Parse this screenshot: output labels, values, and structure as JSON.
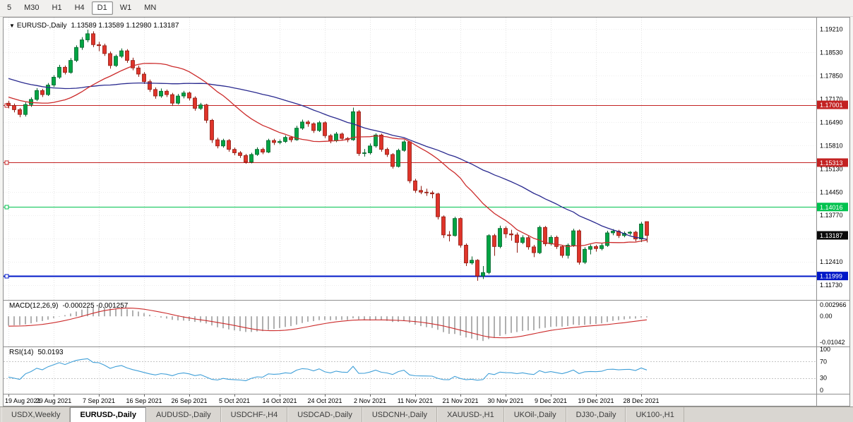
{
  "toolbar": {
    "items": [
      {
        "label": "5"
      },
      {
        "label": "M30"
      },
      {
        "label": "H1"
      },
      {
        "label": "H4"
      },
      {
        "label": "D1",
        "active": true
      },
      {
        "label": "W1"
      },
      {
        "label": "MN"
      }
    ]
  },
  "colors": {
    "up": "#00a443",
    "up_border": "#00622a",
    "down": "#df342a",
    "down_border": "#8f1a10",
    "ma_fast": "#cc2b2b",
    "ma_slow": "#2a2a8f",
    "hline_red": "#c32222",
    "hline_green": "#00c24e",
    "hline_blue": "#0018c8",
    "current_badge": "#0a0a0a",
    "macd_hist": "#b0b0b0",
    "macd_signal": "#cc2b2b",
    "rsi_line": "#3f9fd8",
    "grid": "#e3e3e3",
    "grid_h": "#ededed",
    "separator": "#8f8f8f",
    "axis_text": "#000000",
    "badge_text": "#ffffff"
  },
  "chart_data": {
    "type": "candlestick",
    "title": {
      "marker": "▼",
      "symbol": "EURUSD-,Daily",
      "ohlc": "1.13589 1.13589 1.12980 1.13187"
    },
    "price_range": [
      1.113,
      1.1955
    ],
    "price_axis_ticks": [
      1.1921,
      1.1853,
      1.1785,
      1.1717,
      1.1649,
      1.1581,
      1.1513,
      1.1445,
      1.1377,
      1.1309,
      1.1241,
      1.1173
    ],
    "hlines": [
      {
        "price": 1.17001,
        "label": "1.17001",
        "color_key": "hline_red",
        "width": 1
      },
      {
        "price": 1.15313,
        "label": "1.15313",
        "color_key": "hline_red",
        "width": 1
      },
      {
        "price": 1.14016,
        "label": "1.14016",
        "color_key": "hline_green",
        "width": 1
      },
      {
        "price": 1.11999,
        "label": "1.11999",
        "color_key": "hline_blue",
        "width": 2
      }
    ],
    "current_price": {
      "value": 1.13187,
      "label": "1.13187"
    },
    "x_labels": [
      "19 Aug 2021",
      "29 Aug 2021",
      "7 Sep 2021",
      "16 Sep 2021",
      "26 Sep 2021",
      "5 Oct 2021",
      "14 Oct 2021",
      "24 Oct 2021",
      "2 Nov 2021",
      "11 Nov 2021",
      "21 Nov 2021",
      "30 Nov 2021",
      "9 Dec 2021",
      "19 Dec 2021",
      "28 Dec 2021"
    ],
    "candles": [
      [
        1.1705,
        1.1712,
        1.169,
        1.1698
      ],
      [
        1.1698,
        1.1704,
        1.1678,
        1.1686
      ],
      [
        1.1686,
        1.1691,
        1.1664,
        1.1672
      ],
      [
        1.1672,
        1.1708,
        1.1666,
        1.1701
      ],
      [
        1.1701,
        1.1722,
        1.1694,
        1.1716
      ],
      [
        1.1716,
        1.1749,
        1.1711,
        1.1742
      ],
      [
        1.1742,
        1.1747,
        1.1723,
        1.173
      ],
      [
        1.173,
        1.1764,
        1.1726,
        1.1758
      ],
      [
        1.1758,
        1.1787,
        1.1752,
        1.1781
      ],
      [
        1.1781,
        1.1817,
        1.1776,
        1.181
      ],
      [
        1.181,
        1.1815,
        1.1789,
        1.1795
      ],
      [
        1.1795,
        1.1837,
        1.1791,
        1.183
      ],
      [
        1.183,
        1.1874,
        1.1825,
        1.1868
      ],
      [
        1.1868,
        1.1898,
        1.1861,
        1.189
      ],
      [
        1.189,
        1.192,
        1.1883,
        1.1908
      ],
      [
        1.1908,
        1.1915,
        1.1869,
        1.1876
      ],
      [
        1.1876,
        1.1884,
        1.1857,
        1.1873
      ],
      [
        1.1873,
        1.1879,
        1.1843,
        1.185
      ],
      [
        1.185,
        1.1856,
        1.1806,
        1.1815
      ],
      [
        1.1815,
        1.1847,
        1.1811,
        1.1842
      ],
      [
        1.1842,
        1.1865,
        1.1837,
        1.1858
      ],
      [
        1.1858,
        1.1863,
        1.1823,
        1.183
      ],
      [
        1.183,
        1.1838,
        1.1801,
        1.1808
      ],
      [
        1.1808,
        1.1815,
        1.1782,
        1.179
      ],
      [
        1.179,
        1.1796,
        1.1761,
        1.1768
      ],
      [
        1.1768,
        1.1774,
        1.1738,
        1.1745
      ],
      [
        1.1745,
        1.1751,
        1.1718,
        1.1726
      ],
      [
        1.1726,
        1.1748,
        1.1721,
        1.174
      ],
      [
        1.174,
        1.1745,
        1.1723,
        1.173
      ],
      [
        1.173,
        1.1735,
        1.1697,
        1.1705
      ],
      [
        1.1705,
        1.1732,
        1.1701,
        1.1726
      ],
      [
        1.1726,
        1.1741,
        1.1719,
        1.1735
      ],
      [
        1.1735,
        1.1739,
        1.1713,
        1.172
      ],
      [
        1.172,
        1.1725,
        1.1683,
        1.169
      ],
      [
        1.169,
        1.1706,
        1.1685,
        1.17
      ],
      [
        1.17,
        1.1703,
        1.1647,
        1.1655
      ],
      [
        1.1655,
        1.1659,
        1.1589,
        1.1598
      ],
      [
        1.1598,
        1.1604,
        1.1573,
        1.158
      ],
      [
        1.158,
        1.1601,
        1.1575,
        1.1596
      ],
      [
        1.1596,
        1.16,
        1.1563,
        1.157
      ],
      [
        1.157,
        1.1575,
        1.1553,
        1.156
      ],
      [
        1.156,
        1.1565,
        1.1545,
        1.1552
      ],
      [
        1.1552,
        1.1557,
        1.1528,
        1.1533
      ],
      [
        1.1533,
        1.156,
        1.1529,
        1.1555
      ],
      [
        1.1555,
        1.1576,
        1.1551,
        1.157
      ],
      [
        1.157,
        1.1575,
        1.1556,
        1.1562
      ],
      [
        1.1562,
        1.1601,
        1.1559,
        1.1596
      ],
      [
        1.1596,
        1.1601,
        1.1583,
        1.159
      ],
      [
        1.159,
        1.1599,
        1.1585,
        1.1593
      ],
      [
        1.1593,
        1.1611,
        1.1589,
        1.1605
      ],
      [
        1.1605,
        1.1609,
        1.1591,
        1.1598
      ],
      [
        1.1598,
        1.1639,
        1.1595,
        1.1632
      ],
      [
        1.1632,
        1.1657,
        1.1627,
        1.165
      ],
      [
        1.165,
        1.1655,
        1.1636,
        1.1645
      ],
      [
        1.1645,
        1.1649,
        1.1618,
        1.1625
      ],
      [
        1.1625,
        1.1653,
        1.1621,
        1.1648
      ],
      [
        1.1648,
        1.1652,
        1.1603,
        1.161
      ],
      [
        1.161,
        1.1615,
        1.1588,
        1.1595
      ],
      [
        1.1595,
        1.1621,
        1.1591,
        1.1615
      ],
      [
        1.1615,
        1.1619,
        1.1595,
        1.1602
      ],
      [
        1.1602,
        1.1606,
        1.1591,
        1.1598
      ],
      [
        1.1598,
        1.1692,
        1.1595,
        1.168
      ],
      [
        1.168,
        1.1685,
        1.1551,
        1.1558
      ],
      [
        1.1558,
        1.1571,
        1.1549,
        1.156
      ],
      [
        1.156,
        1.1587,
        1.1555,
        1.158
      ],
      [
        1.158,
        1.1617,
        1.1575,
        1.1612
      ],
      [
        1.1612,
        1.1616,
        1.1563,
        1.157
      ],
      [
        1.157,
        1.1575,
        1.1548,
        1.1555
      ],
      [
        1.1555,
        1.1559,
        1.1514,
        1.152
      ],
      [
        1.152,
        1.1572,
        1.1517,
        1.1567
      ],
      [
        1.1567,
        1.1597,
        1.1563,
        1.1592
      ],
      [
        1.1592,
        1.1594,
        1.1471,
        1.1478
      ],
      [
        1.1478,
        1.1484,
        1.1443,
        1.145
      ],
      [
        1.145,
        1.1463,
        1.1439,
        1.1445
      ],
      [
        1.1445,
        1.1455,
        1.1434,
        1.1443
      ],
      [
        1.1443,
        1.1449,
        1.1427,
        1.144
      ],
      [
        1.144,
        1.1443,
        1.1365,
        1.1373
      ],
      [
        1.1373,
        1.1377,
        1.1311,
        1.132
      ],
      [
        1.132,
        1.1331,
        1.1301,
        1.1318
      ],
      [
        1.1318,
        1.1373,
        1.1315,
        1.1368
      ],
      [
        1.1368,
        1.1371,
        1.1283,
        1.129
      ],
      [
        1.129,
        1.1295,
        1.1229,
        1.1238
      ],
      [
        1.1238,
        1.1257,
        1.1233,
        1.1246
      ],
      [
        1.1246,
        1.1249,
        1.1186,
        1.12
      ],
      [
        1.12,
        1.1229,
        1.1191,
        1.121
      ],
      [
        1.121,
        1.1322,
        1.1205,
        1.1318
      ],
      [
        1.1318,
        1.1323,
        1.1259,
        1.1286
      ],
      [
        1.1286,
        1.1347,
        1.1281,
        1.1339
      ],
      [
        1.1339,
        1.1345,
        1.1311,
        1.1323
      ],
      [
        1.1323,
        1.1335,
        1.1303,
        1.132
      ],
      [
        1.132,
        1.1327,
        1.1268,
        1.1298
      ],
      [
        1.1298,
        1.1319,
        1.1293,
        1.1312
      ],
      [
        1.1312,
        1.1317,
        1.1277,
        1.1285
      ],
      [
        1.1285,
        1.1291,
        1.1255,
        1.1268
      ],
      [
        1.1268,
        1.1347,
        1.1264,
        1.1342
      ],
      [
        1.1342,
        1.1346,
        1.1287,
        1.1294
      ],
      [
        1.1294,
        1.1319,
        1.1289,
        1.1313
      ],
      [
        1.1313,
        1.1318,
        1.1279,
        1.1286
      ],
      [
        1.1286,
        1.1291,
        1.1253,
        1.126
      ],
      [
        1.126,
        1.1295,
        1.1251,
        1.129
      ],
      [
        1.129,
        1.1338,
        1.1285,
        1.1332
      ],
      [
        1.1332,
        1.1336,
        1.1233,
        1.124
      ],
      [
        1.124,
        1.1284,
        1.1235,
        1.1278
      ],
      [
        1.1278,
        1.1292,
        1.1263,
        1.1286
      ],
      [
        1.1286,
        1.1291,
        1.1271,
        1.128
      ],
      [
        1.128,
        1.1295,
        1.1275,
        1.1289
      ],
      [
        1.1289,
        1.1332,
        1.1285,
        1.1326
      ],
      [
        1.1326,
        1.1337,
        1.1319,
        1.1331
      ],
      [
        1.1331,
        1.1335,
        1.1311,
        1.1318
      ],
      [
        1.1318,
        1.133,
        1.1313,
        1.1325
      ],
      [
        1.1325,
        1.1331,
        1.1319,
        1.1328
      ],
      [
        1.1328,
        1.1332,
        1.1301,
        1.1308
      ],
      [
        1.1308,
        1.1358,
        1.1299,
        1.1352
      ],
      [
        1.13589,
        1.13589,
        1.1298,
        1.13187
      ]
    ],
    "ma_prehistory": [
      1.198,
      1.1975,
      1.1982,
      1.1968,
      1.196,
      1.1965,
      1.1952,
      1.1945,
      1.195,
      1.1938,
      1.193,
      1.1935,
      1.1922,
      1.1915,
      1.192,
      1.1908,
      1.19,
      1.1905,
      1.1892,
      1.1885,
      1.189,
      1.1878,
      1.187,
      1.1875,
      1.1862,
      1.1855,
      1.186,
      1.1848,
      1.184,
      1.1845,
      1.1832,
      1.1825,
      1.183,
      1.1818,
      1.181,
      1.1815,
      1.1802,
      1.1795,
      1.18,
      1.1788,
      1.178,
      1.1785,
      1.1772,
      1.1765,
      1.177,
      1.1758,
      1.175,
      1.1755,
      1.1742,
      1.1735,
      1.172,
      1.1708,
      1.17,
      1.1705,
      1.1692,
      1.1685,
      1.169,
      1.1678,
      1.1672,
      1.1676
    ],
    "macd": {
      "label": "MACD(12,26,9)",
      "values": "-0.000225 -0.001257",
      "params": {
        "fast": 12,
        "slow": 26,
        "signal": 9
      },
      "axis_labels": {
        "top": "0.002966",
        "zero": "0.00",
        "bottom": "-0.01042"
      }
    },
    "rsi": {
      "label": "RSI(14)",
      "value": "50.0193",
      "period": 14,
      "axis_labels": [
        "100",
        "70",
        "30",
        "0"
      ],
      "levels": [
        70,
        30
      ]
    }
  },
  "tabs": {
    "items": [
      {
        "label": "USDX,Weekly"
      },
      {
        "label": "EURUSD-,Daily",
        "active": true
      },
      {
        "label": "AUDUSD-,Daily"
      },
      {
        "label": "USDCHF-,H4"
      },
      {
        "label": "USDCAD-,Daily"
      },
      {
        "label": "USDCNH-,Daily"
      },
      {
        "label": "XAUUSD-,H1"
      },
      {
        "label": "UKOil-,Daily"
      },
      {
        "label": "DJ30-,Daily"
      },
      {
        "label": "UK100-,H1"
      }
    ]
  }
}
